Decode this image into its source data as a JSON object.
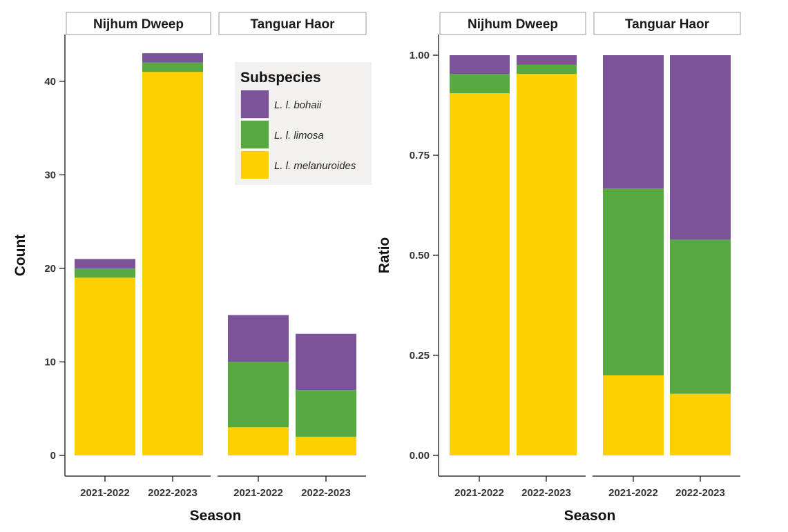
{
  "chart_data": [
    {
      "type": "bar",
      "stacked": true,
      "xlabel": "Season",
      "ylabel": "Count",
      "ylim": [
        0,
        45
      ],
      "yticks": [
        0,
        10,
        20,
        30,
        40
      ],
      "ytick_labels": [
        "0",
        "10",
        "20",
        "30",
        "40"
      ],
      "grid": false,
      "facets": [
        {
          "name": "Nijhum Dweep",
          "categories": [
            "2021-2022",
            "2022-2023"
          ]
        },
        {
          "name": "Tanguar Haor",
          "categories": [
            "2021-2022",
            "2022-2023"
          ]
        }
      ],
      "series": [
        {
          "name": "L. l. melanuroides",
          "values": [
            [
              19,
              41
            ],
            [
              3,
              2
            ]
          ]
        },
        {
          "name": "L. l. limosa",
          "values": [
            [
              1,
              1
            ],
            [
              7,
              5
            ]
          ]
        },
        {
          "name": "L. l. bohaii",
          "values": [
            [
              1,
              1
            ],
            [
              5,
              6
            ]
          ]
        }
      ],
      "legend": {
        "title": "Subspecies",
        "placement": "top-right",
        "entries": [
          "L. l. bohaii",
          "L. l. limosa",
          "L. l. melanuroides"
        ]
      }
    },
    {
      "type": "bar",
      "stacked": true,
      "xlabel": "Season",
      "ylabel": "Ratio",
      "ylim": [
        0,
        1.05
      ],
      "yticks": [
        0,
        0.25,
        0.5,
        0.75,
        1
      ],
      "ytick_labels": [
        "0.00",
        "0.25",
        "0.50",
        "0.75",
        "1.00"
      ],
      "grid": false,
      "facets": [
        {
          "name": "Nijhum Dweep",
          "categories": [
            "2021-2022",
            "2022-2023"
          ]
        },
        {
          "name": "Tanguar Haor",
          "categories": [
            "2021-2022",
            "2022-2023"
          ]
        }
      ],
      "series": [
        {
          "name": "L. l. melanuroides",
          "values": [
            [
              0.905,
              0.953
            ],
            [
              0.2,
              0.154
            ]
          ]
        },
        {
          "name": "L. l. limosa",
          "values": [
            [
              0.048,
              0.023
            ],
            [
              0.467,
              0.385
            ]
          ]
        },
        {
          "name": "L. l. bohaii",
          "values": [
            [
              0.047,
              0.024
            ],
            [
              0.333,
              0.461
            ]
          ]
        }
      ]
    }
  ],
  "colors": {
    "L. l. melanuroides": "#FFD000",
    "L. l. limosa": "#58A942",
    "L. l. bohaii": "#7C5299",
    "strip_fill": "#FFFFFF",
    "strip_border": "#AAAAAA",
    "legend_bg": "#F2F1EF",
    "axis": "#333333"
  }
}
